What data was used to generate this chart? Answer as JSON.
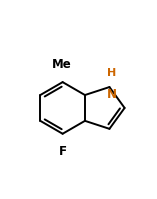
{
  "bg_color": "#ffffff",
  "line_color": "#000000",
  "label_color_me": "#000000",
  "label_color_nh": "#cc6600",
  "label_color_f": "#000000",
  "label_me": "Me",
  "label_h": "H",
  "label_n": "N",
  "label_f": "F",
  "figsize": [
    1.57,
    1.99
  ],
  "dpi": 100,
  "lw": 1.4
}
